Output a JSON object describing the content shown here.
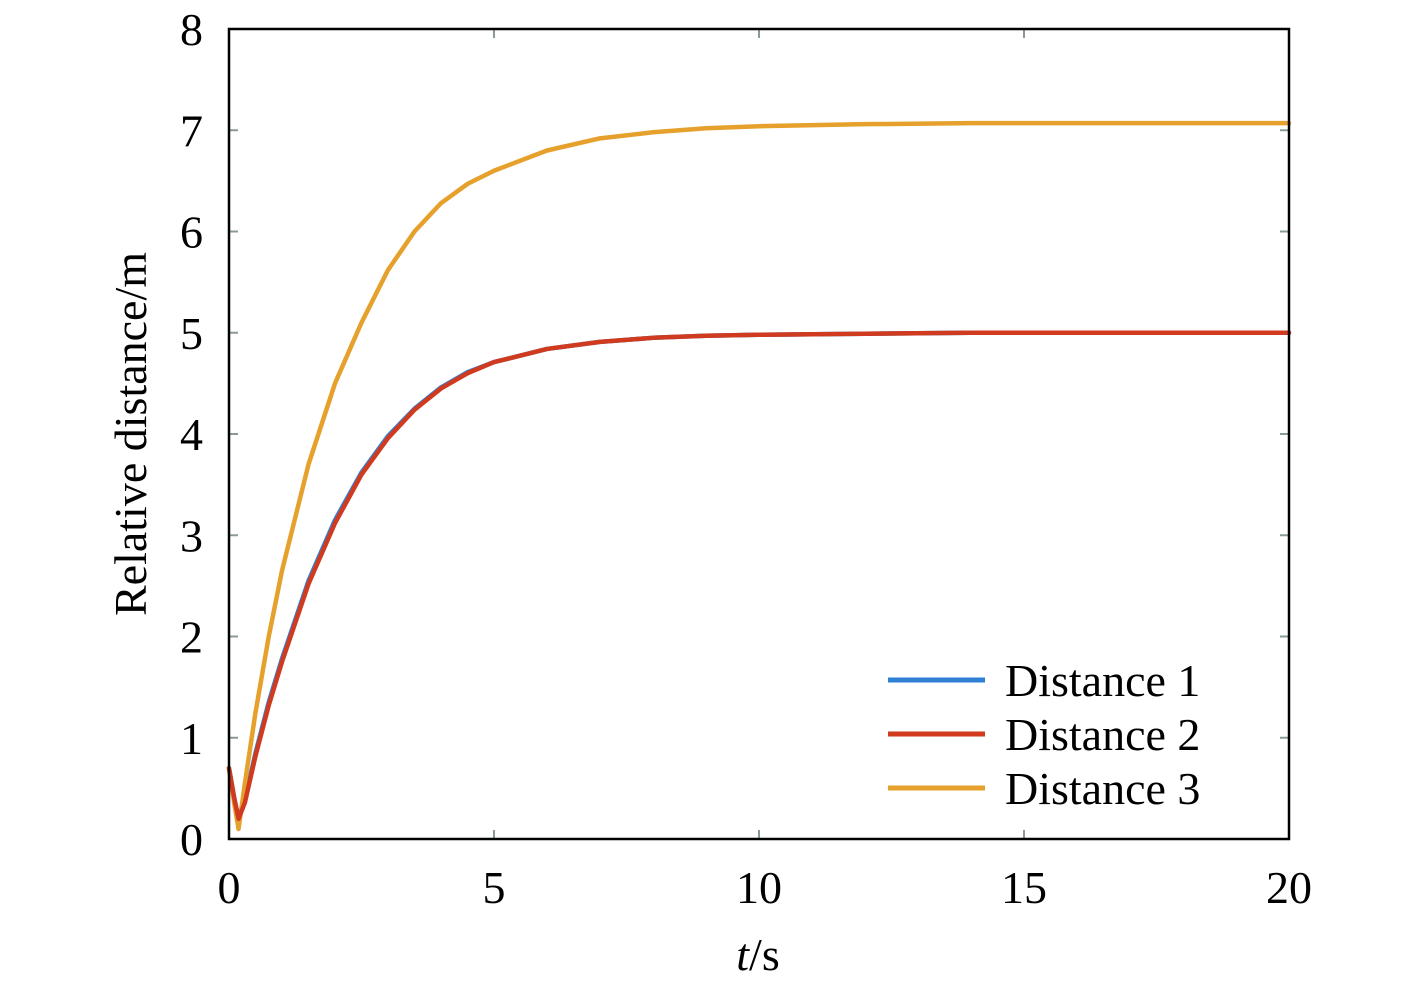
{
  "chart_data": {
    "type": "line",
    "title": "",
    "xlabel": {
      "italic_part": "t",
      "rest": "/s"
    },
    "ylabel": "Relative distance/m",
    "xlim": [
      0,
      20
    ],
    "ylim": [
      0,
      8
    ],
    "x_ticks": [
      "0",
      "5",
      "10",
      "15",
      "20"
    ],
    "y_ticks": [
      "0",
      "1",
      "2",
      "3",
      "4",
      "5",
      "6",
      "7",
      "8"
    ],
    "grid": false,
    "legend_position": "bottom-right",
    "series": [
      {
        "name": "Distance 1",
        "color": "#2f80d4",
        "x": [
          0,
          0.1,
          0.18,
          0.3,
          0.5,
          0.75,
          1,
          1.5,
          2,
          2.5,
          3,
          3.5,
          4,
          4.5,
          5,
          6,
          7,
          8,
          9,
          10,
          12,
          14,
          16,
          18,
          20
        ],
        "y": [
          0.7,
          0.4,
          0.2,
          0.38,
          0.85,
          1.35,
          1.78,
          2.55,
          3.15,
          3.62,
          3.98,
          4.25,
          4.46,
          4.61,
          4.71,
          4.84,
          4.91,
          4.95,
          4.97,
          4.98,
          4.99,
          5.0,
          5.0,
          5.0,
          5.0
        ]
      },
      {
        "name": "Distance 2",
        "color": "#d03a1e",
        "x": [
          0,
          0.1,
          0.18,
          0.3,
          0.5,
          0.75,
          1,
          1.5,
          2,
          2.5,
          3,
          3.5,
          4,
          4.5,
          5,
          6,
          7,
          8,
          9,
          10,
          12,
          14,
          16,
          18,
          20
        ],
        "y": [
          0.7,
          0.4,
          0.2,
          0.36,
          0.82,
          1.32,
          1.75,
          2.52,
          3.12,
          3.6,
          3.96,
          4.24,
          4.45,
          4.6,
          4.71,
          4.84,
          4.91,
          4.95,
          4.97,
          4.98,
          4.99,
          5.0,
          5.0,
          5.0,
          5.0
        ]
      },
      {
        "name": "Distance 3",
        "color": "#e6a02c",
        "x": [
          0,
          0.1,
          0.18,
          0.3,
          0.5,
          0.75,
          1,
          1.5,
          2,
          2.5,
          3,
          3.5,
          4,
          4.5,
          5,
          6,
          7,
          8,
          9,
          10,
          12,
          14,
          16,
          18,
          20
        ],
        "y": [
          0.7,
          0.35,
          0.1,
          0.55,
          1.25,
          2.0,
          2.65,
          3.7,
          4.5,
          5.1,
          5.62,
          6.0,
          6.28,
          6.47,
          6.6,
          6.8,
          6.92,
          6.98,
          7.02,
          7.04,
          7.06,
          7.07,
          7.07,
          7.07,
          7.07
        ]
      }
    ]
  }
}
